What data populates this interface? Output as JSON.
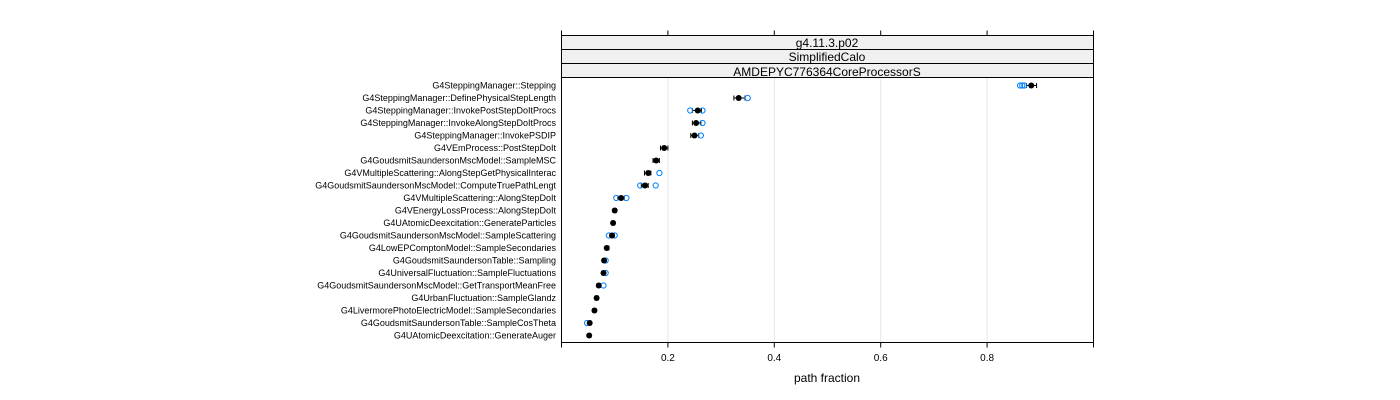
{
  "chart_data": {
    "type": "dotplot",
    "strips": [
      "g4.11.3.p02",
      "SimplifiedCalo",
      "AMDEPYC776364CoreProcessorS"
    ],
    "xlabel": "path fraction",
    "xlim": [
      0.0,
      1.0
    ],
    "xticks": [
      0.2,
      0.4,
      0.6,
      0.8
    ],
    "xtick_labels": [
      "0.2",
      "0.4",
      "0.6",
      "0.8"
    ],
    "grid": true,
    "colors": {
      "median": "#000000",
      "outlier": "#0080ff",
      "whisker": "#000000",
      "grid": "#e6e6e6",
      "strip_bg": "#f0f0f0"
    },
    "categories": [
      "G4SteppingManager::Stepping",
      "G4SteppingManager::DefinePhysicalStepLength",
      "G4SteppingManager::InvokePostStepDoItProcs",
      "G4SteppingManager::InvokeAlongStepDoItProcs",
      "G4SteppingManager::InvokePSDIP",
      "G4VEmProcess::PostStepDoIt",
      "G4GoudsmitSaundersonMscModel::SampleMSC",
      "G4VMultipleScattering::AlongStepGetPhysicalInterac",
      "G4GoudsmitSaundersonMscModel::ComputeTruePathLengt",
      "G4VMultipleScattering::AlongStepDoIt",
      "G4VEnergyLossProcess::AlongStepDoIt",
      "G4UAtomicDeexcitation::GenerateParticles",
      "G4GoudsmitSaundersonMscModel::SampleScattering",
      "G4LowEPComptonModel::SampleSecondaries",
      "G4GoudsmitSaundersonTable::Sampling",
      "G4UniversalFluctuation::SampleFluctuations",
      "G4GoudsmitSaundersonMscModel::GetTransportMeanFree",
      "G4UrbanFluctuation::SampleGlandz",
      "G4LivermorePhotoElectricModel::SampleSecondaries",
      "G4GoudsmitSaundersonTable::SampleCosTheta",
      "G4UAtomicDeexcitation::GenerateAuger"
    ],
    "medians": [
      0.883,
      0.333,
      0.256,
      0.253,
      0.25,
      0.193,
      0.178,
      0.163,
      0.157,
      0.112,
      0.1,
      0.097,
      0.095,
      0.085,
      0.08,
      0.079,
      0.07,
      0.066,
      0.062,
      0.053,
      0.052
    ],
    "whiskers": [
      [
        0.874,
        0.893
      ],
      [
        0.324,
        0.345
      ],
      [
        0.246,
        0.263
      ],
      [
        0.246,
        0.262
      ],
      [
        0.243,
        0.258
      ],
      [
        0.186,
        0.2
      ],
      [
        0.172,
        0.184
      ],
      [
        0.156,
        0.168
      ],
      [
        0.15,
        0.163
      ],
      [
        0.106,
        0.118
      ],
      [
        0.097,
        0.103
      ],
      [
        0.094,
        0.1
      ],
      [
        0.091,
        0.099
      ],
      [
        0.082,
        0.089
      ],
      [
        0.077,
        0.083
      ],
      [
        0.076,
        0.082
      ],
      [
        0.067,
        0.073
      ],
      [
        0.063,
        0.069
      ],
      [
        0.059,
        0.065
      ],
      [
        0.051,
        0.056
      ],
      [
        0.05,
        0.055
      ]
    ],
    "outliers": [
      [
        0.862,
        0.866,
        0.87
      ],
      [
        0.35
      ],
      [
        0.242,
        0.265
      ],
      [
        0.265
      ],
      [
        0.262
      ],
      [],
      [],
      [
        0.184
      ],
      [
        0.148,
        0.177
      ],
      [
        0.103,
        0.122
      ],
      [],
      [],
      [
        0.089,
        0.1
      ],
      [],
      [
        0.083
      ],
      [
        0.083
      ],
      [
        0.079
      ],
      [],
      [],
      [
        0.048
      ],
      []
    ]
  }
}
